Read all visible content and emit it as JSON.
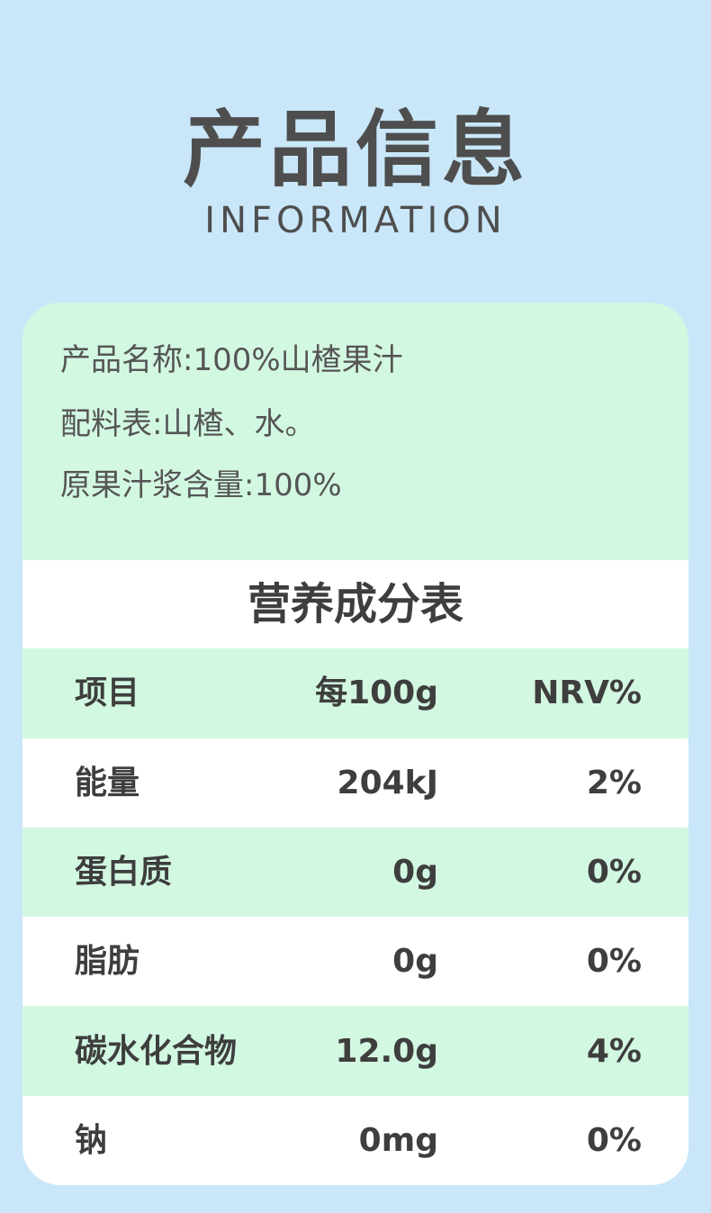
{
  "header": {
    "title": "产品信息",
    "subtitle": "INFORMATION"
  },
  "info": [
    "产品名称:100%山楂果汁",
    "配料表:山楂、水。",
    "原果汁浆含量:100%"
  ],
  "table": {
    "title": "营养成分表",
    "headers": [
      "项目",
      "每100g",
      "NRV%"
    ],
    "rows": [
      [
        "能量",
        "204kJ",
        "2%"
      ],
      [
        "蛋白质",
        "0g",
        "0%"
      ],
      [
        "脂肪",
        "0g",
        "0%"
      ],
      [
        "碳水化合物",
        "12.0g",
        "4%"
      ],
      [
        "钠",
        "0mg",
        "0%"
      ]
    ]
  },
  "colors": {
    "background": "#c9e7f9",
    "green": "#d3f8e2",
    "white": "#ffffff",
    "text": "#3e3e3e"
  }
}
